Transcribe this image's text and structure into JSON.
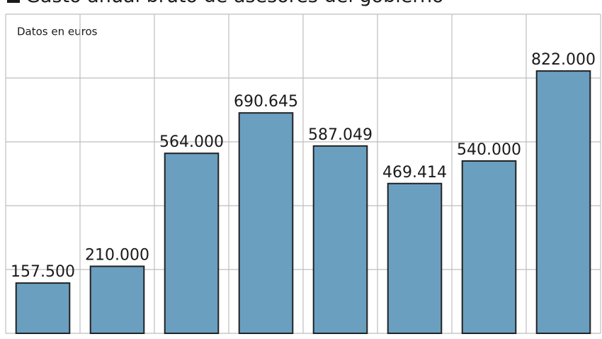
{
  "chart_data": {
    "type": "bar",
    "title": "Gasto anual bruto de asesores del gobierno",
    "subtitle": "Datos en euros",
    "categories": [
      null,
      null,
      null,
      null,
      null,
      null,
      null,
      null
    ],
    "values": [
      157500,
      210000,
      564000,
      690645,
      587049,
      469414,
      540000,
      822000
    ],
    "value_labels": [
      "157.500",
      "210.000",
      "564.000",
      "690.645",
      "587.049",
      "469.414",
      "540.000",
      "822.000"
    ],
    "color": "#6a9fc0",
    "ylim": [
      0,
      1000000
    ],
    "yticks": [
      0,
      200000,
      400000,
      600000,
      800000,
      1000000
    ],
    "grid": true
  }
}
